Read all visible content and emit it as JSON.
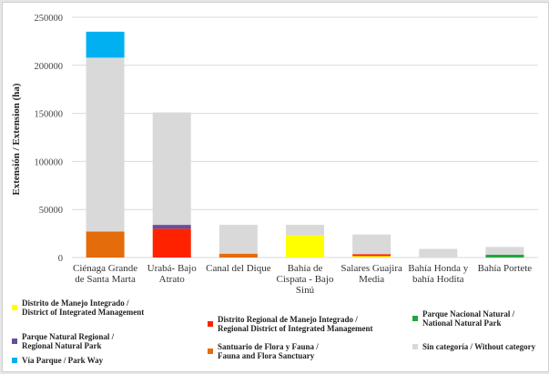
{
  "chart_data": {
    "type": "bar",
    "stacked": true,
    "title": "",
    "xlabel": "",
    "ylabel": "Extensión / Extension (ha)",
    "ylim": [
      0,
      250000
    ],
    "yticks": [
      "0",
      "50000",
      "100000",
      "150000",
      "200000",
      "250000"
    ],
    "grid": true,
    "legend_position": "bottom",
    "categories": [
      "Ciénaga Grande de Santa Marta",
      "Urabá- Bajo Atrato",
      "Canal del Dique",
      "Bahía de Cispata - Bajo Sinú",
      "Salares Guajira Media",
      "Bahía Honda y bahía Hodita",
      "Bahía Portete"
    ],
    "series": [
      {
        "name": "Distrito de Manejo Integrado /\nDistrict of Integrated Management",
        "color": "#ffff00",
        "values": [
          0,
          0,
          0,
          23000,
          1500,
          0,
          0
        ]
      },
      {
        "name": "Distrito Regional de Manejo Integrado /\nRegional District of Integrated Management",
        "color": "#ff2200",
        "values": [
          0,
          30000,
          0,
          0,
          2000,
          0,
          0
        ]
      },
      {
        "name": "Parque Nacional Natural /\nNational Natural Park",
        "color": "#1fa83c",
        "values": [
          0,
          0,
          0,
          0,
          0,
          0,
          3000
        ]
      },
      {
        "name": "Parque Natural Regional /\nRegional Natural Park",
        "color": "#6a4c9c",
        "values": [
          0,
          4000,
          0,
          0,
          0,
          0,
          0
        ]
      },
      {
        "name": "Santuario de Flora y Fauna /\nFauna and Flora Sanctuary",
        "color": "#e46c0a",
        "values": [
          27000,
          0,
          4000,
          0,
          0,
          0,
          0
        ]
      },
      {
        "name": "Sin categoría / Without category",
        "color": "#d9d9d9",
        "values": [
          181000,
          117000,
          30000,
          11000,
          20500,
          9000,
          8000
        ]
      },
      {
        "name": "Vía Parque / Park Way",
        "color": "#00b0f0",
        "values": [
          27000,
          0,
          0,
          0,
          0,
          0,
          0
        ]
      }
    ]
  }
}
